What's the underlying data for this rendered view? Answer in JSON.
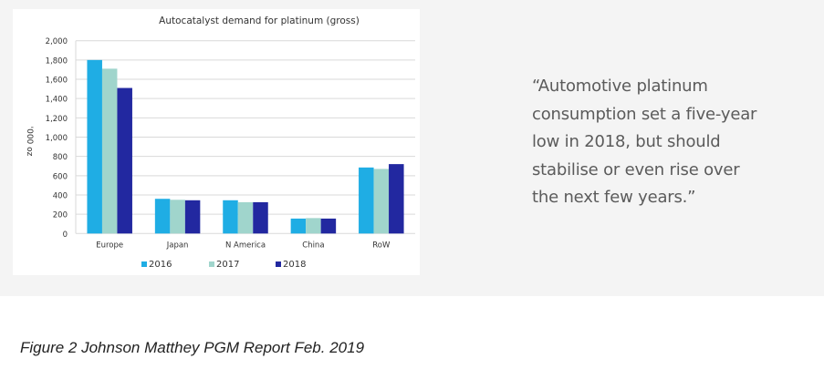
{
  "chart_data": {
    "type": "bar",
    "title": "Autocatalyst demand for platinum (gross)",
    "ylabel": "'000 oz",
    "xlabel": "",
    "ylim": [
      0,
      2000
    ],
    "yticks": [
      "0",
      "200",
      "400",
      "600",
      "800",
      "1,000",
      "1,200",
      "1,400",
      "1,600",
      "1,800",
      "2,000"
    ],
    "grid": true,
    "legend": "bottom",
    "categories": [
      "Europe",
      "Japan",
      "N America",
      "China",
      "RoW"
    ],
    "series": [
      {
        "name": "2016",
        "color": "#1fade4",
        "values": [
          1800,
          360,
          345,
          155,
          685
        ]
      },
      {
        "name": "2017",
        "color": "#a0d5cc",
        "values": [
          1710,
          350,
          325,
          160,
          670
        ]
      },
      {
        "name": "2018",
        "color": "#2228a0",
        "values": [
          1510,
          345,
          325,
          155,
          720
        ]
      }
    ]
  },
  "quote": {
    "lines": [
      "“Automotive platinum",
      "consumption set a five-year",
      "low in 2018, but should",
      "stabilise or even rise over",
      "the next few years.”"
    ]
  },
  "caption": "Figure 2 Johnson Matthey PGM Report Feb. 2019"
}
